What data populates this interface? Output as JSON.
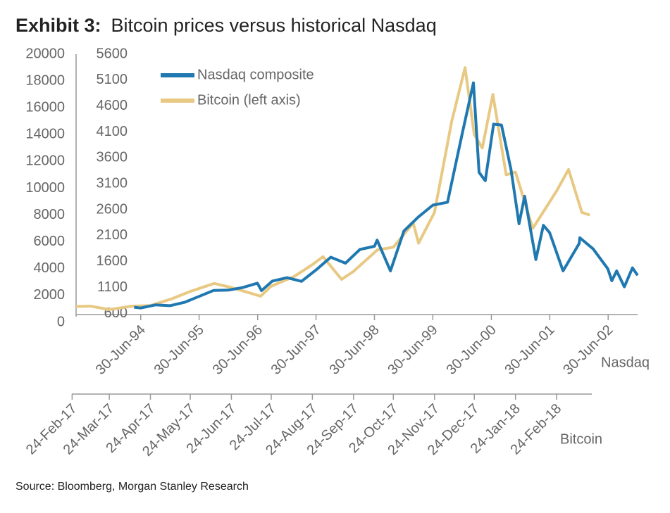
{
  "chart_data": {
    "type": "line",
    "title_label": "Exhibit 3:",
    "title": "Bitcoin prices versus historical Nasdaq",
    "source": "Source: Bloomberg, Morgan Stanley Research",
    "xlabel": "Nasdaq",
    "x2label": "Bitcoin",
    "legend": "upper left",
    "grid": false,
    "ylim": [
      0,
      20000
    ],
    "yticks": [
      0,
      2000,
      4000,
      6000,
      8000,
      10000,
      12000,
      14000,
      16000,
      18000,
      20000
    ],
    "y2lim": [
      430,
      5600
    ],
    "y2ticks": [
      600,
      1100,
      1600,
      2100,
      2600,
      3100,
      3600,
      4100,
      4600,
      5100,
      5600
    ],
    "xlim": [
      "1993-05-22",
      "2002-12-31"
    ],
    "xticks": [
      {
        "value": "1994-06-30",
        "label": "30-Jun-94"
      },
      {
        "value": "1995-06-30",
        "label": "30-Jun-95"
      },
      {
        "value": "1996-06-30",
        "label": "30-Jun-96"
      },
      {
        "value": "1997-06-30",
        "label": "30-Jun-97"
      },
      {
        "value": "1998-06-30",
        "label": "30-Jun-98"
      },
      {
        "value": "1999-06-30",
        "label": "30-Jun-99"
      },
      {
        "value": "2000-06-30",
        "label": "30-Jun-00"
      },
      {
        "value": "2001-06-30",
        "label": "30-Jun-01"
      },
      {
        "value": "2002-06-30",
        "label": "30-Jun-02"
      }
    ],
    "x2lim": [
      "2017-02-27",
      "2018-04-26"
    ],
    "x2ticks": [
      {
        "value": "2017-02-24",
        "label": "24-Feb-17"
      },
      {
        "value": "2017-03-24",
        "label": "24-Mar-17"
      },
      {
        "value": "2017-04-24",
        "label": "24-Apr-17"
      },
      {
        "value": "2017-05-24",
        "label": "24-May-17"
      },
      {
        "value": "2017-06-24",
        "label": "24-Jun-17"
      },
      {
        "value": "2017-07-24",
        "label": "24-Jul-17"
      },
      {
        "value": "2017-08-24",
        "label": "24-Aug-17"
      },
      {
        "value": "2017-09-24",
        "label": "24-Sep-17"
      },
      {
        "value": "2017-10-24",
        "label": "24-Oct-17"
      },
      {
        "value": "2017-11-24",
        "label": "24-Nov-17"
      },
      {
        "value": "2017-12-24",
        "label": "24-Dec-17"
      },
      {
        "value": "2018-01-24",
        "label": "24-Jan-18"
      },
      {
        "value": "2018-02-24",
        "label": "24-Feb-18"
      }
    ],
    "series": [
      {
        "name": "Nasdaq composite",
        "color": "#1f78b0",
        "axis": "y2",
        "xaxis": "x",
        "x": [
          "1994-05-20",
          "1994-06-30",
          "1994-09-30",
          "1994-12-30",
          "1995-03-31",
          "1995-06-30",
          "1995-09-29",
          "1995-12-29",
          "1996-03-29",
          "1996-06-28",
          "1996-07-24",
          "1996-09-30",
          "1996-12-31",
          "1997-03-31",
          "1997-06-30",
          "1997-09-30",
          "1997-12-31",
          "1998-03-31",
          "1998-06-30",
          "1998-07-17",
          "1998-10-08",
          "1998-12-31",
          "1999-03-31",
          "1999-06-30",
          "1999-09-30",
          "1999-12-31",
          "2000-03-10",
          "2000-04-14",
          "2000-05-23",
          "2000-07-14",
          "2000-09-01",
          "2000-10-31",
          "2000-12-20",
          "2001-01-24",
          "2001-04-04",
          "2001-05-21",
          "2001-06-29",
          "2001-09-21",
          "2001-12-31",
          "2002-01-04",
          "2002-03-28",
          "2002-06-28",
          "2002-07-23",
          "2002-08-22",
          "2002-10-09",
          "2002-11-29",
          "2002-12-31"
        ],
        "values": [
          720,
          705,
          765,
          750,
          815,
          930,
          1045,
          1050,
          1100,
          1185,
          1040,
          1225,
          1290,
          1220,
          1440,
          1685,
          1570,
          1835,
          1895,
          2015,
          1420,
          2190,
          2460,
          2690,
          2745,
          4070,
          5048,
          3320,
          3160,
          4250,
          4235,
          3370,
          2330,
          2860,
          1640,
          2300,
          2160,
          1420,
          1950,
          2060,
          1845,
          1460,
          1230,
          1420,
          1114,
          1480,
          1335
        ]
      },
      {
        "name": "Bitcoin (left axis)",
        "color": "#e8c983",
        "axis": "y",
        "xaxis": "x2",
        "x": [
          "2017-02-27",
          "2017-03-10",
          "2017-03-24",
          "2017-04-10",
          "2017-04-24",
          "2017-05-10",
          "2017-05-24",
          "2017-06-11",
          "2017-06-24",
          "2017-07-16",
          "2017-07-24",
          "2017-08-10",
          "2017-08-24",
          "2017-09-01",
          "2017-09-15",
          "2017-09-24",
          "2017-10-12",
          "2017-10-24",
          "2017-11-08",
          "2017-11-12",
          "2017-11-24",
          "2017-12-07",
          "2017-12-17",
          "2017-12-24",
          "2017-12-30",
          "2018-01-07",
          "2018-01-17",
          "2018-01-24",
          "2018-02-06",
          "2018-02-24",
          "2018-03-05",
          "2018-03-15",
          "2018-03-21"
        ],
        "values": [
          1180,
          1200,
          950,
          1200,
          1250,
          1750,
          2300,
          2900,
          2600,
          1950,
          2700,
          3400,
          4300,
          4900,
          3200,
          3800,
          5400,
          5600,
          7400,
          5900,
          8200,
          15000,
          19000,
          14000,
          13000,
          17000,
          11000,
          11200,
          7000,
          9800,
          11400,
          8200,
          8000
        ]
      }
    ]
  }
}
